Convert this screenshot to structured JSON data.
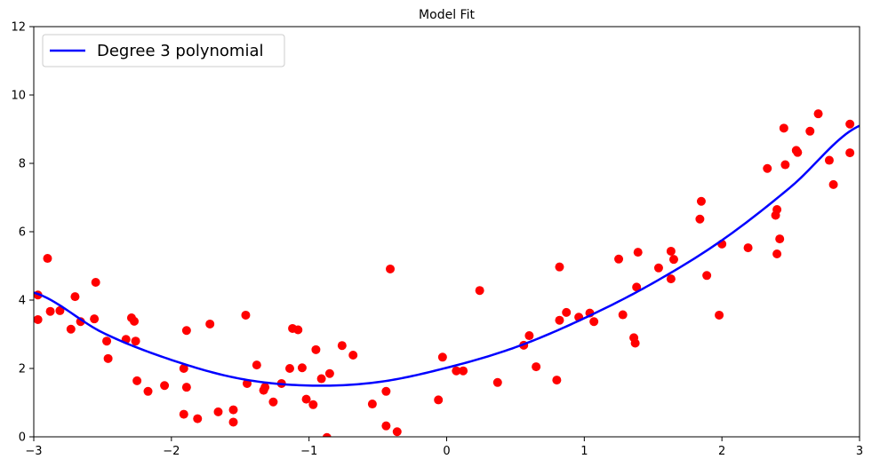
{
  "chart_data": {
    "type": "scatter",
    "title": "Model Fit",
    "xlabel": "",
    "ylabel": "",
    "xlim": [
      -3,
      3
    ],
    "ylim": [
      0,
      12
    ],
    "xticks": [
      -3,
      -2,
      -1,
      0,
      1,
      2,
      3
    ],
    "yticks": [
      0,
      2,
      4,
      6,
      8,
      10,
      12
    ],
    "grid": false,
    "legend_position": "top-left",
    "colors": {
      "points": "#ff0000",
      "curve": "#0000ff"
    },
    "series": [
      {
        "name": "",
        "kind": "points",
        "points": [
          [
            -2.97,
            4.15
          ],
          [
            -2.97,
            3.43
          ],
          [
            -2.9,
            5.22
          ],
          [
            -2.88,
            3.67
          ],
          [
            -2.81,
            3.69
          ],
          [
            -2.73,
            3.15
          ],
          [
            -2.7,
            4.1
          ],
          [
            -2.66,
            3.37
          ],
          [
            -2.56,
            3.45
          ],
          [
            -2.55,
            4.52
          ],
          [
            -2.47,
            2.8
          ],
          [
            -2.46,
            2.29
          ],
          [
            -2.33,
            2.85
          ],
          [
            -2.29,
            3.48
          ],
          [
            -2.27,
            3.38
          ],
          [
            -2.26,
            2.8
          ],
          [
            -2.25,
            1.64
          ],
          [
            -2.17,
            1.33
          ],
          [
            -2.05,
            1.5
          ],
          [
            -1.91,
            0.66
          ],
          [
            -1.91,
            2.0
          ],
          [
            -1.89,
            1.45
          ],
          [
            -1.89,
            3.11
          ],
          [
            -1.81,
            0.53
          ],
          [
            -1.72,
            3.3
          ],
          [
            -1.66,
            0.73
          ],
          [
            -1.55,
            0.43
          ],
          [
            -1.55,
            0.79
          ],
          [
            -1.46,
            3.56
          ],
          [
            -1.45,
            1.56
          ],
          [
            -1.38,
            2.1
          ],
          [
            -1.33,
            1.36
          ],
          [
            -1.32,
            1.45
          ],
          [
            -1.26,
            1.02
          ],
          [
            -1.2,
            1.56
          ],
          [
            -1.14,
            2.0
          ],
          [
            -1.12,
            3.17
          ],
          [
            -1.08,
            3.13
          ],
          [
            -1.05,
            2.02
          ],
          [
            -1.02,
            1.1
          ],
          [
            -0.97,
            0.94
          ],
          [
            -0.95,
            2.55
          ],
          [
            -0.91,
            1.7
          ],
          [
            -0.87,
            -0.02
          ],
          [
            -0.85,
            1.85
          ],
          [
            -0.76,
            2.67
          ],
          [
            -0.68,
            2.39
          ],
          [
            -0.54,
            0.96
          ],
          [
            -0.44,
            1.33
          ],
          [
            -0.44,
            0.32
          ],
          [
            -0.41,
            4.91
          ],
          [
            -0.36,
            0.15
          ],
          [
            -0.06,
            1.08
          ],
          [
            -0.03,
            2.33
          ],
          [
            0.07,
            1.93
          ],
          [
            0.12,
            1.93
          ],
          [
            0.24,
            4.28
          ],
          [
            0.37,
            1.59
          ],
          [
            0.56,
            2.68
          ],
          [
            0.6,
            2.96
          ],
          [
            0.65,
            2.05
          ],
          [
            0.8,
            1.66
          ],
          [
            0.82,
            3.41
          ],
          [
            0.82,
            4.97
          ],
          [
            0.87,
            3.64
          ],
          [
            0.96,
            3.5
          ],
          [
            1.04,
            3.62
          ],
          [
            1.07,
            3.37
          ],
          [
            1.25,
            5.2
          ],
          [
            1.28,
            3.57
          ],
          [
            1.36,
            2.9
          ],
          [
            1.37,
            2.74
          ],
          [
            1.38,
            4.38
          ],
          [
            1.39,
            5.4
          ],
          [
            1.54,
            4.94
          ],
          [
            1.63,
            4.62
          ],
          [
            1.63,
            5.43
          ],
          [
            1.65,
            5.19
          ],
          [
            1.84,
            6.37
          ],
          [
            1.85,
            6.89
          ],
          [
            1.89,
            4.72
          ],
          [
            1.98,
            3.56
          ],
          [
            2.0,
            5.64
          ],
          [
            2.19,
            5.53
          ],
          [
            2.33,
            7.85
          ],
          [
            2.39,
            6.48
          ],
          [
            2.4,
            6.65
          ],
          [
            2.4,
            5.35
          ],
          [
            2.42,
            5.79
          ],
          [
            2.45,
            9.03
          ],
          [
            2.46,
            7.96
          ],
          [
            2.54,
            8.38
          ],
          [
            2.55,
            8.32
          ],
          [
            2.64,
            8.94
          ],
          [
            2.7,
            9.45
          ],
          [
            2.78,
            8.09
          ],
          [
            2.81,
            7.38
          ],
          [
            2.93,
            9.15
          ],
          [
            2.93,
            8.31
          ]
        ]
      },
      {
        "name": "Degree 3 polynomial",
        "kind": "line",
        "x": [
          -3,
          -2.5,
          -2,
          -1.5,
          -1,
          -0.5,
          0,
          0.5,
          1,
          1.5,
          2,
          2.5,
          3
        ],
        "y": [
          4.22,
          3.05,
          2.25,
          1.7,
          1.5,
          1.6,
          2.02,
          2.62,
          3.47,
          4.5,
          5.75,
          7.31,
          9.1
        ]
      }
    ],
    "legend": [
      {
        "label": "Degree 3 polynomial"
      }
    ]
  }
}
